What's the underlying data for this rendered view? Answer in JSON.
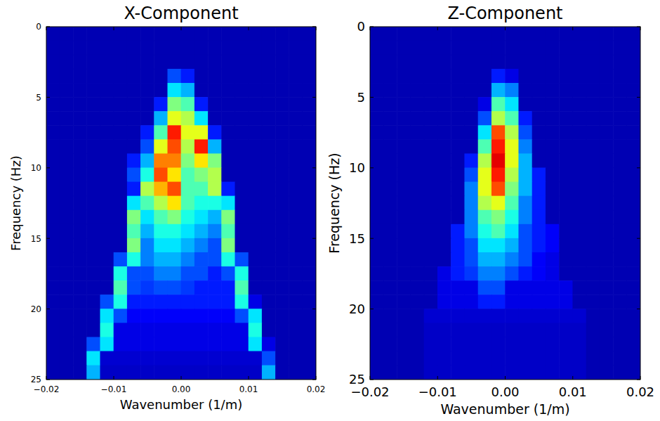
{
  "chart_data": [
    {
      "type": "heatmap",
      "title": "X-Component",
      "x_label": "Wavenumber (1/m)",
      "y_label": "Frequency (Hz)",
      "xlim": [
        -0.02,
        0.02
      ],
      "ylim": [
        25,
        0
      ],
      "xticks": [
        {
          "value": -0.02,
          "label": "−0.02"
        },
        {
          "value": -0.01,
          "label": "−0.01"
        },
        {
          "value": 0,
          "label": "0.00"
        },
        0.01,
        0.02
      ],
      "yticks": [
        0,
        5,
        10,
        15,
        20,
        25
      ],
      "zlim": [
        0,
        100
      ],
      "x": [
        -0.019,
        -0.017,
        -0.015,
        -0.013,
        -0.011,
        -0.009,
        -0.007,
        -0.005,
        -0.003,
        -0.001,
        0.001,
        0.003,
        0.005,
        0.007,
        0.009,
        0.011,
        0.013,
        0.015,
        0.017,
        0.019
      ],
      "y": [
        0.5,
        1.5,
        2.5,
        3.5,
        4.5,
        5.5,
        6.5,
        7.5,
        8.5,
        9.5,
        10.5,
        11.5,
        12.5,
        13.5,
        14.5,
        15.5,
        16.5,
        17.5,
        18.5,
        19.5,
        20.5,
        21.5,
        22.5,
        23.5,
        24.5
      ],
      "values": [
        [
          5,
          5,
          5,
          5,
          5,
          5,
          5,
          5,
          5,
          5,
          5,
          5,
          5,
          5,
          5,
          5,
          5,
          5,
          5,
          5
        ],
        [
          5,
          5,
          5,
          5,
          5,
          5,
          5,
          5,
          5,
          5,
          5,
          5,
          5,
          5,
          5,
          5,
          5,
          5,
          5,
          5
        ],
        [
          5,
          5,
          5,
          5,
          5,
          5,
          5,
          5,
          5,
          5,
          5,
          5,
          5,
          5,
          5,
          5,
          5,
          5,
          5,
          5
        ],
        [
          5,
          5,
          5,
          5,
          5,
          5,
          5,
          5,
          5,
          20,
          15,
          5,
          5,
          5,
          5,
          5,
          5,
          5,
          5,
          5
        ],
        [
          5,
          5,
          5,
          5,
          5,
          5,
          5,
          5,
          5,
          35,
          30,
          5,
          5,
          5,
          5,
          5,
          5,
          5,
          5,
          5
        ],
        [
          5,
          5,
          5,
          5,
          5,
          5,
          5,
          5,
          15,
          50,
          45,
          15,
          5,
          5,
          5,
          5,
          5,
          5,
          5,
          5
        ],
        [
          5,
          5,
          5,
          5,
          5,
          5,
          5,
          5,
          30,
          60,
          55,
          35,
          5,
          5,
          5,
          5,
          5,
          5,
          5,
          5
        ],
        [
          5,
          5,
          5,
          5,
          5,
          5,
          5,
          15,
          45,
          85,
          60,
          60,
          15,
          5,
          5,
          5,
          5,
          5,
          5,
          5
        ],
        [
          5,
          5,
          5,
          5,
          5,
          5,
          5,
          20,
          60,
          80,
          55,
          85,
          30,
          5,
          5,
          5,
          5,
          5,
          5,
          5
        ],
        [
          5,
          5,
          5,
          5,
          5,
          5,
          15,
          30,
          75,
          75,
          50,
          65,
          50,
          5,
          5,
          5,
          5,
          5,
          5,
          5
        ],
        [
          5,
          5,
          5,
          5,
          5,
          5,
          20,
          40,
          80,
          65,
          45,
          50,
          55,
          5,
          5,
          5,
          5,
          5,
          5,
          5
        ],
        [
          5,
          5,
          5,
          5,
          5,
          5,
          15,
          55,
          70,
          80,
          45,
          45,
          55,
          15,
          5,
          5,
          5,
          5,
          5,
          5
        ],
        [
          5,
          5,
          5,
          5,
          5,
          5,
          35,
          45,
          55,
          65,
          45,
          40,
          40,
          35,
          5,
          5,
          5,
          5,
          5,
          5
        ],
        [
          5,
          5,
          5,
          5,
          5,
          5,
          50,
          35,
          45,
          50,
          40,
          35,
          30,
          50,
          5,
          5,
          5,
          5,
          5,
          5
        ],
        [
          5,
          5,
          5,
          5,
          5,
          5,
          45,
          30,
          40,
          40,
          35,
          30,
          25,
          45,
          5,
          5,
          5,
          5,
          5,
          5
        ],
        [
          5,
          5,
          5,
          5,
          5,
          5,
          50,
          25,
          35,
          35,
          30,
          25,
          20,
          50,
          5,
          5,
          5,
          5,
          5,
          5
        ],
        [
          5,
          5,
          5,
          5,
          5,
          20,
          40,
          25,
          30,
          30,
          25,
          20,
          20,
          40,
          20,
          5,
          5,
          5,
          5,
          5
        ],
        [
          5,
          5,
          5,
          5,
          5,
          40,
          20,
          20,
          25,
          25,
          20,
          20,
          15,
          20,
          40,
          5,
          5,
          5,
          5,
          5
        ],
        [
          5,
          5,
          5,
          5,
          5,
          45,
          20,
          18,
          20,
          20,
          18,
          15,
          15,
          15,
          45,
          5,
          5,
          5,
          5,
          5
        ],
        [
          5,
          5,
          5,
          5,
          20,
          40,
          15,
          15,
          15,
          15,
          15,
          15,
          15,
          15,
          40,
          10,
          5,
          5,
          5,
          5
        ],
        [
          5,
          5,
          5,
          5,
          35,
          20,
          12,
          12,
          12,
          12,
          12,
          12,
          12,
          12,
          20,
          35,
          5,
          5,
          5,
          5
        ],
        [
          5,
          5,
          5,
          5,
          40,
          10,
          10,
          10,
          10,
          10,
          10,
          10,
          10,
          10,
          10,
          40,
          5,
          5,
          5,
          5
        ],
        [
          5,
          5,
          5,
          20,
          35,
          10,
          10,
          10,
          10,
          10,
          10,
          10,
          10,
          10,
          10,
          35,
          10,
          5,
          5,
          5
        ],
        [
          5,
          5,
          5,
          35,
          8,
          8,
          8,
          8,
          8,
          8,
          8,
          8,
          8,
          8,
          8,
          8,
          20,
          5,
          5,
          5
        ],
        [
          5,
          5,
          5,
          30,
          7,
          7,
          7,
          7,
          7,
          7,
          7,
          7,
          7,
          7,
          7,
          7,
          30,
          5,
          5,
          5
        ]
      ]
    },
    {
      "type": "heatmap",
      "title": "Z-Component",
      "x_label": "Wavenumber (1/m)",
      "y_label": "Frequency (Hz)",
      "xlim": [
        -0.02,
        0.02
      ],
      "ylim": [
        25,
        0
      ],
      "xticks": [
        {
          "value": -0.02,
          "label": "−0.02"
        },
        {
          "value": -0.01,
          "label": "−0.01"
        },
        {
          "value": 0,
          "label": "0.00"
        },
        0.01,
        0.02
      ],
      "yticks": [
        0,
        5,
        10,
        15,
        20,
        25
      ],
      "zlim": [
        0,
        100
      ],
      "x": [
        -0.019,
        -0.017,
        -0.015,
        -0.013,
        -0.011,
        -0.009,
        -0.007,
        -0.005,
        -0.003,
        -0.001,
        0.001,
        0.003,
        0.005,
        0.007,
        0.009,
        0.011,
        0.013,
        0.015,
        0.017,
        0.019
      ],
      "y": [
        0.5,
        1.5,
        2.5,
        3.5,
        4.5,
        5.5,
        6.5,
        7.5,
        8.5,
        9.5,
        10.5,
        11.5,
        12.5,
        13.5,
        14.5,
        15.5,
        16.5,
        17.5,
        18.5,
        19.5,
        20.5,
        21.5,
        22.5,
        23.5,
        24.5
      ],
      "values": [
        [
          5,
          5,
          5,
          5,
          5,
          5,
          5,
          5,
          5,
          5,
          5,
          5,
          5,
          5,
          5,
          5,
          5,
          5,
          5,
          5
        ],
        [
          5,
          5,
          5,
          5,
          5,
          5,
          5,
          5,
          5,
          5,
          5,
          5,
          5,
          5,
          5,
          5,
          5,
          5,
          5,
          5
        ],
        [
          5,
          5,
          5,
          5,
          5,
          5,
          5,
          5,
          5,
          5,
          5,
          5,
          5,
          5,
          5,
          5,
          5,
          5,
          5,
          5
        ],
        [
          5,
          5,
          5,
          5,
          5,
          5,
          5,
          5,
          5,
          15,
          10,
          5,
          5,
          5,
          5,
          5,
          5,
          5,
          5,
          5
        ],
        [
          5,
          5,
          5,
          5,
          5,
          5,
          5,
          5,
          5,
          30,
          25,
          5,
          5,
          5,
          5,
          5,
          5,
          5,
          5,
          5
        ],
        [
          5,
          5,
          5,
          5,
          5,
          5,
          5,
          5,
          10,
          45,
          35,
          5,
          5,
          5,
          5,
          5,
          5,
          5,
          5,
          5
        ],
        [
          5,
          5,
          5,
          5,
          5,
          5,
          5,
          5,
          20,
          55,
          45,
          15,
          5,
          5,
          5,
          5,
          5,
          5,
          5,
          5
        ],
        [
          5,
          5,
          5,
          5,
          5,
          5,
          5,
          5,
          35,
          80,
          55,
          20,
          5,
          5,
          5,
          5,
          5,
          5,
          5,
          5
        ],
        [
          5,
          5,
          5,
          5,
          5,
          5,
          5,
          5,
          45,
          85,
          60,
          25,
          5,
          5,
          5,
          5,
          5,
          5,
          5,
          5
        ],
        [
          5,
          5,
          5,
          5,
          5,
          5,
          5,
          15,
          55,
          90,
          60,
          30,
          5,
          5,
          5,
          5,
          5,
          5,
          5,
          5
        ],
        [
          5,
          5,
          5,
          5,
          5,
          5,
          5,
          20,
          60,
          85,
          55,
          30,
          15,
          5,
          5,
          5,
          5,
          5,
          5,
          5
        ],
        [
          5,
          5,
          5,
          5,
          5,
          5,
          5,
          25,
          60,
          80,
          50,
          30,
          15,
          5,
          5,
          5,
          5,
          5,
          5,
          5
        ],
        [
          5,
          5,
          5,
          5,
          5,
          5,
          5,
          25,
          55,
          60,
          45,
          25,
          15,
          5,
          5,
          5,
          5,
          5,
          5,
          5
        ],
        [
          5,
          5,
          5,
          5,
          5,
          5,
          5,
          25,
          45,
          50,
          40,
          25,
          15,
          5,
          5,
          5,
          5,
          5,
          5,
          5
        ],
        [
          5,
          5,
          5,
          5,
          5,
          5,
          15,
          25,
          40,
          45,
          35,
          20,
          15,
          12,
          5,
          5,
          5,
          5,
          5,
          5
        ],
        [
          5,
          5,
          5,
          5,
          5,
          5,
          15,
          20,
          35,
          35,
          30,
          20,
          15,
          12,
          5,
          5,
          5,
          5,
          5,
          5
        ],
        [
          5,
          5,
          5,
          5,
          5,
          5,
          15,
          20,
          30,
          30,
          25,
          20,
          12,
          10,
          5,
          5,
          5,
          5,
          5,
          5
        ],
        [
          5,
          5,
          5,
          5,
          5,
          10,
          15,
          18,
          25,
          25,
          20,
          15,
          12,
          10,
          5,
          5,
          5,
          5,
          5,
          5
        ],
        [
          5,
          5,
          5,
          5,
          5,
          10,
          10,
          10,
          20,
          20,
          10,
          10,
          10,
          10,
          10,
          5,
          5,
          5,
          5,
          5
        ],
        [
          5,
          5,
          5,
          5,
          5,
          10,
          10,
          10,
          15,
          15,
          10,
          10,
          10,
          10,
          10,
          5,
          5,
          5,
          5,
          5
        ],
        [
          5,
          5,
          5,
          5,
          8,
          8,
          8,
          8,
          8,
          8,
          8,
          8,
          8,
          8,
          8,
          8,
          5,
          5,
          5,
          5
        ],
        [
          5,
          5,
          5,
          5,
          7,
          7,
          7,
          7,
          7,
          7,
          7,
          7,
          7,
          7,
          7,
          7,
          5,
          5,
          5,
          5
        ],
        [
          5,
          5,
          5,
          5,
          7,
          7,
          7,
          7,
          7,
          7,
          7,
          7,
          7,
          7,
          7,
          7,
          5,
          5,
          5,
          5
        ],
        [
          5,
          5,
          5,
          5,
          7,
          7,
          7,
          7,
          7,
          7,
          7,
          7,
          7,
          7,
          7,
          7,
          5,
          5,
          5,
          5
        ],
        [
          5,
          5,
          5,
          5,
          7,
          7,
          7,
          7,
          7,
          7,
          7,
          7,
          7,
          7,
          7,
          7,
          5,
          5,
          5,
          5
        ]
      ]
    }
  ]
}
